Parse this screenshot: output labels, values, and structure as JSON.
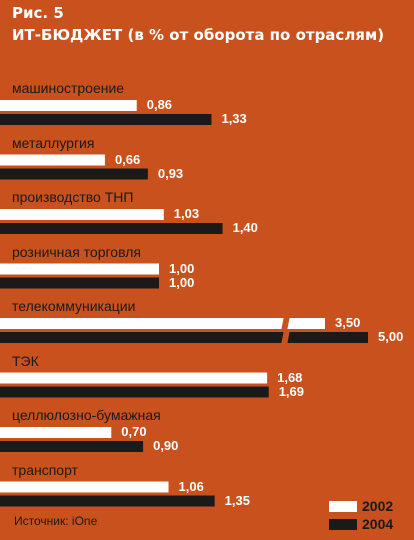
{
  "figure": "Рис. 5",
  "chart_data": {
    "type": "bar",
    "orientation": "horizontal",
    "title": "ИТ-БЮДЖЕТ (в % от оборота по отраслям)",
    "categories": [
      "машиностроение",
      "металлургия",
      "производство ТНП",
      "розничная торговля",
      "телекоммуникации",
      "ТЭК",
      "целлюлозно-бумажная",
      "транспорт"
    ],
    "series": [
      {
        "name": "2002",
        "color": "#ffffff",
        "values": [
          0.86,
          0.66,
          1.03,
          1.0,
          3.5,
          1.68,
          0.7,
          1.06
        ],
        "labels": [
          "0,86",
          "0,66",
          "1,03",
          "1,00",
          "3,50",
          "1,68",
          "0,70",
          "1,06"
        ]
      },
      {
        "name": "2004",
        "color": "#1a1a1a",
        "values": [
          1.33,
          0.93,
          1.4,
          1.0,
          5.0,
          1.69,
          0.9,
          1.35
        ],
        "labels": [
          "1,33",
          "0,93",
          "1,40",
          "1,00",
          "5,00",
          "1,69",
          "0,90",
          "1,35"
        ]
      }
    ],
    "axis_break": true,
    "legend_position": "bottom-right"
  },
  "source": "Источник: iOne"
}
